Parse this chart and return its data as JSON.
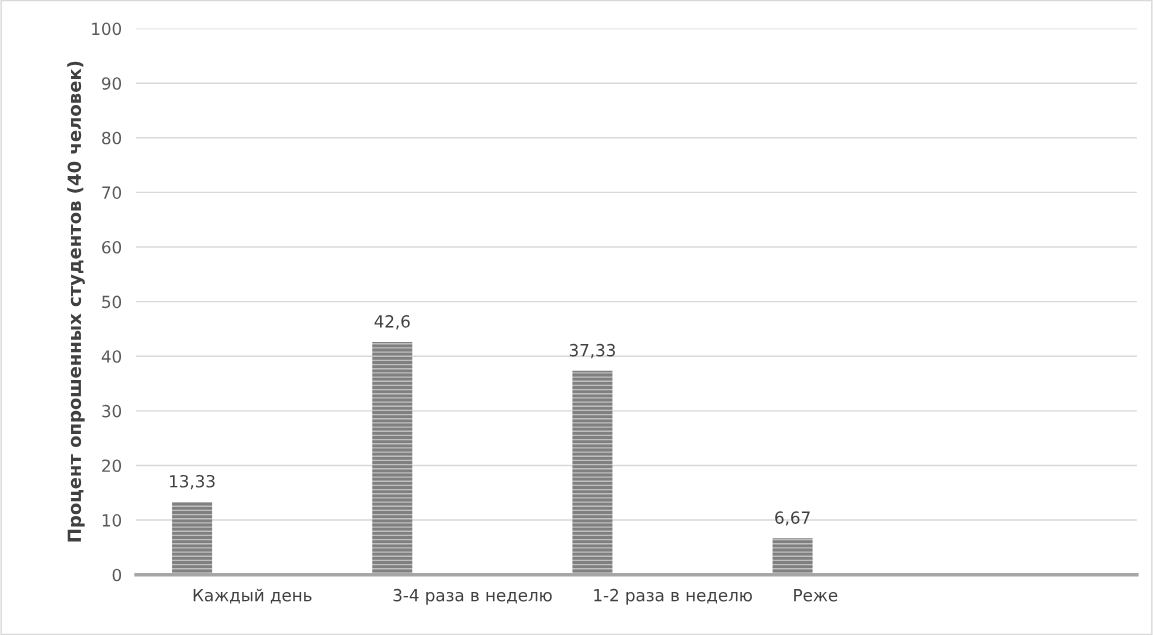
{
  "chart_data": {
    "type": "bar",
    "ylabel": "Процент опрошенных студентов (40 человек)",
    "categories": [
      "Каждый день",
      "3-4 раза в неделю",
      "1-2 раза в неделю",
      "Реже",
      null
    ],
    "values": [
      13.33,
      42.6,
      37.33,
      6.67,
      null
    ],
    "value_labels": [
      "13,33",
      "42,6",
      "37,33",
      "6,67",
      null
    ],
    "color": "#808080",
    "ylim": [
      0,
      100
    ],
    "yticks": [
      0,
      10,
      20,
      30,
      40,
      50,
      60,
      70,
      80,
      90,
      100
    ],
    "grid": "y",
    "legend": false
  }
}
